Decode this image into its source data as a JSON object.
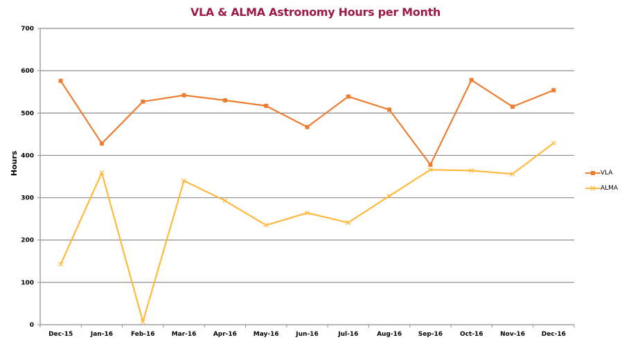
{
  "chart_data": {
    "type": "line",
    "title": "VLA & ALMA Astronomy Hours per Month",
    "xlabel": "",
    "ylabel": "Hours",
    "ylim": [
      0,
      700
    ],
    "yticks": [
      0,
      100,
      200,
      300,
      400,
      500,
      600,
      700
    ],
    "grid": true,
    "legend_position": "right",
    "categories": [
      "Dec-15",
      "Jan-16",
      "Feb-16",
      "Mar-16",
      "Apr-16",
      "May-16",
      "Jun-16",
      "Jul-16",
      "Aug-16",
      "Sep-16",
      "Oct-16",
      "Nov-16",
      "Dec-16"
    ],
    "series": [
      {
        "name": "VLA",
        "color": "#ed7d31",
        "marker": "square",
        "values": [
          576,
          428,
          527,
          542,
          530,
          517,
          467,
          539,
          508,
          378,
          578,
          515,
          554
        ]
      },
      {
        "name": "ALMA",
        "color": "#ffb93c",
        "marker": "x",
        "values": [
          143,
          359,
          7,
          340,
          293,
          235,
          264,
          241,
          304,
          366,
          364,
          356,
          429
        ]
      }
    ]
  }
}
